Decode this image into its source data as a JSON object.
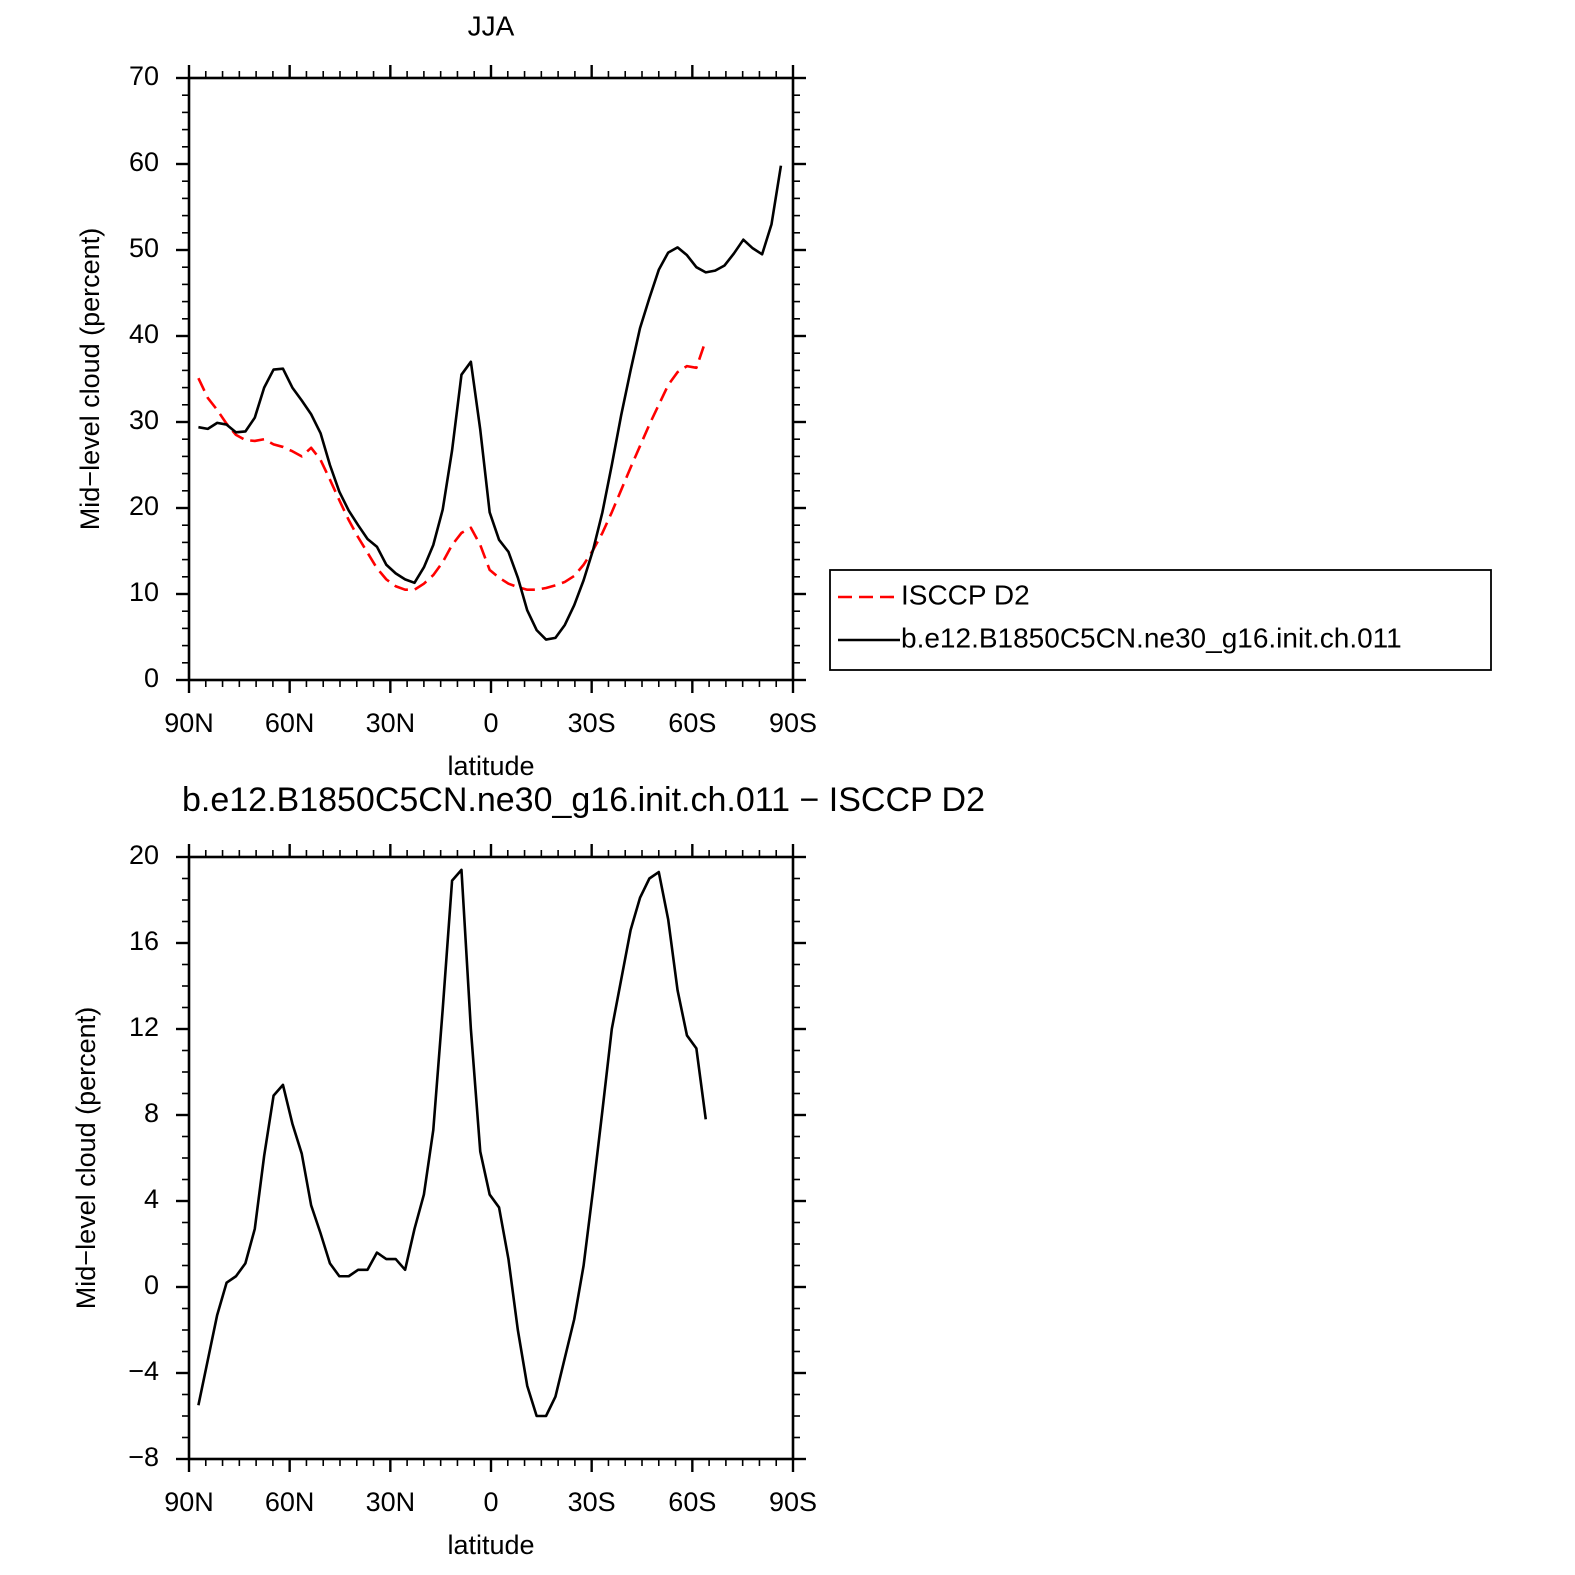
{
  "chart_data": [
    {
      "type": "line",
      "title": "JJA",
      "x_label": "latitude",
      "y_label": "Mid−level cloud (percent)",
      "x": [
        87.2,
        84.4,
        81.6,
        78.8,
        76,
        73.2,
        70.4,
        67.6,
        64.8,
        62,
        59.2,
        56.4,
        53.6,
        50.8,
        48,
        45.2,
        42.4,
        39.6,
        36.8,
        34,
        31.2,
        28.4,
        25.6,
        22.8,
        20,
        17.2,
        14.4,
        11.6,
        8.8,
        6,
        3.2,
        0.4,
        -2.4,
        -5.2,
        -8,
        -10.8,
        -13.6,
        -16.4,
        -19.2,
        -22,
        -24.8,
        -27.6,
        -30.4,
        -33.2,
        -36,
        -38.8,
        -41.6,
        -44.4,
        -47.2,
        -50,
        -52.8,
        -55.6,
        -58.4,
        -61.2,
        -64,
        -66.8,
        -69.6,
        -72.4,
        -75.2,
        -78,
        -80.8,
        -83.6,
        -86.4
      ],
      "series": [
        {
          "name": "ISCCP D2",
          "color": "#ff0000",
          "line_style": "dashed",
          "values": [
            35.1,
            32.8,
            31.4,
            29.8,
            28.5,
            27.9,
            27.8,
            28,
            27.4,
            27.1,
            26.6,
            26,
            27,
            25.6,
            23.3,
            20.9,
            18.6,
            16.6,
            14.8,
            13,
            11.7,
            10.9,
            10.5,
            10.5,
            11.2,
            12.2,
            13.7,
            15.7,
            17.1,
            17.7,
            15.7,
            12.8,
            11.9,
            11.2,
            10.8,
            10.5,
            10.5,
            10.7,
            11,
            11.4,
            12.1,
            13.4,
            15.1,
            17.1,
            19.5,
            22.1,
            24.7,
            27.2,
            29.7,
            32,
            34.3,
            35.8,
            36.5,
            36.3,
            39.5,
            null,
            null,
            null,
            null,
            null,
            null,
            null,
            null
          ]
        },
        {
          "name": "b.e12.B1850C5CN.ne30_g16.init.ch.011",
          "color": "#000000",
          "line_style": "solid",
          "values": [
            29.4,
            29.2,
            29.9,
            29.7,
            28.8,
            28.9,
            30.5,
            34,
            36.1,
            36.2,
            34,
            32.5,
            30.9,
            28.7,
            25,
            21.9,
            19.7,
            18,
            16.4,
            15.5,
            13.4,
            12.4,
            11.7,
            11.3,
            13.1,
            15.7,
            19.8,
            26.7,
            35.5,
            37,
            29.1,
            19.5,
            16.3,
            14.9,
            11.9,
            8.1,
            5.8,
            4.7,
            4.9,
            6.4,
            8.7,
            11.6,
            15.1,
            19.5,
            25,
            30.8,
            36,
            40.9,
            44.4,
            47.7,
            49.7,
            50.3,
            49.4,
            48,
            47.4,
            47.6,
            48.2,
            49.6,
            51.2,
            50.2,
            49.5,
            53,
            59.8
          ]
        }
      ],
      "xlim": [
        90,
        -90
      ],
      "xticks": [
        {
          "value": 90,
          "label": "90N"
        },
        {
          "value": 60,
          "label": "60N"
        },
        {
          "value": 30,
          "label": "30N"
        },
        0,
        {
          "value": -30,
          "label": "30S"
        },
        {
          "value": -60,
          "label": "60S"
        },
        {
          "value": -90,
          "label": "90S"
        }
      ],
      "ylim": [
        0,
        70
      ],
      "yticks": [
        0,
        10,
        20,
        30,
        40,
        50,
        60,
        70
      ],
      "legend": "right"
    },
    {
      "type": "line",
      "title": "b.e12.B1850C5CN.ne30_g16.init.ch.011 − ISCCP D2",
      "x_label": "latitude",
      "y_label": "Mid−level cloud (percent)",
      "x": [
        87.2,
        84.4,
        81.6,
        78.8,
        76,
        73.2,
        70.4,
        67.6,
        64.8,
        62,
        59.2,
        56.4,
        53.6,
        50.8,
        48,
        45.2,
        42.4,
        39.6,
        36.8,
        34,
        31.2,
        28.4,
        25.6,
        22.8,
        20,
        17.2,
        14.4,
        11.6,
        8.8,
        6,
        3.2,
        0.4,
        -2.4,
        -5.2,
        -8,
        -10.8,
        -13.6,
        -16.4,
        -19.2,
        -22,
        -24.8,
        -27.6,
        -30.4,
        -33.2,
        -36,
        -38.8,
        -41.6,
        -44.4,
        -47.2,
        -50,
        -52.8,
        -55.6,
        -58.4,
        -61.2,
        -64
      ],
      "series": [
        {
          "color": "#000000",
          "line_style": "solid",
          "values": [
            -5.5,
            -3.4,
            -1.3,
            0.2,
            0.5,
            1.1,
            2.7,
            6.1,
            8.9,
            9.4,
            7.6,
            6.2,
            3.8,
            2.5,
            1.1,
            0.5,
            0.5,
            0.8,
            0.8,
            1.6,
            1.3,
            1.3,
            0.8,
            2.7,
            4.3,
            7.3,
            12.9,
            18.9,
            19.4,
            12,
            6.3,
            4.3,
            3.7,
            1.3,
            -2,
            -4.6,
            -6,
            -6,
            -5.1,
            -3.3,
            -1.5,
            1,
            4.5,
            8.2,
            12,
            14.3,
            16.6,
            18.1,
            19,
            19.3,
            17.1,
            13.8,
            11.7,
            11.1,
            7.8
          ]
        }
      ],
      "xlim": [
        90,
        -90
      ],
      "xticks": [
        {
          "value": 90,
          "label": "90N"
        },
        {
          "value": 60,
          "label": "60N"
        },
        {
          "value": 30,
          "label": "30N"
        },
        0,
        {
          "value": -30,
          "label": "30S"
        },
        {
          "value": -60,
          "label": "60S"
        },
        {
          "value": -90,
          "label": "90S"
        }
      ],
      "ylim": [
        -8,
        20
      ],
      "yticks": [
        {
          "value": -8,
          "label": "−8"
        },
        {
          "value": -4,
          "label": "−4"
        },
        0,
        4,
        8,
        12,
        16,
        20
      ]
    }
  ]
}
